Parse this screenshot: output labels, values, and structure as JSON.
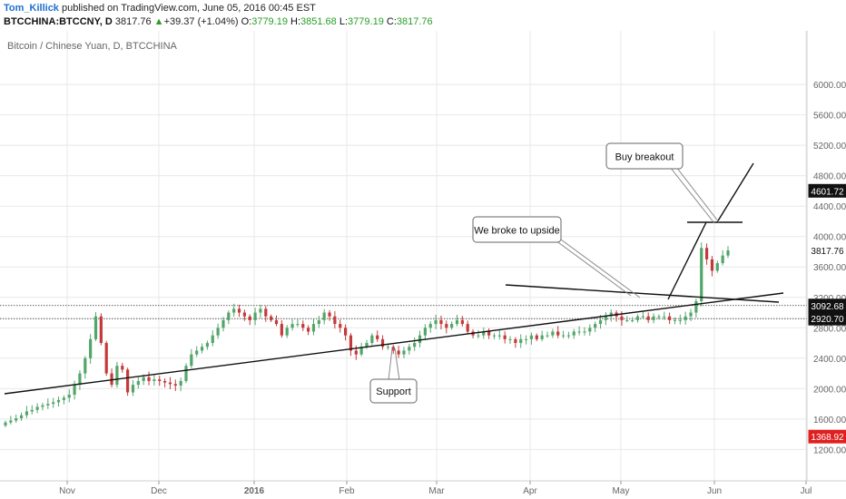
{
  "header": {
    "author": "Tom_Killick",
    "published": "published on TradingView.com, June 05, 2016 00:45 EST",
    "symbol": "BTCCHINA:BTCCNY, D",
    "last": "3817.76",
    "change": "+39.37 (+1.04%)",
    "o_label": "O:",
    "o": "3779.19",
    "h_label": "H:",
    "h": "3851.68",
    "l_label": "L:",
    "l": "3779.19",
    "c_label": "C:",
    "c": "3817.76"
  },
  "chart_data": {
    "type": "candlestick",
    "title": "Bitcoin / Chinese Yuan, D, BTCCHINA",
    "ylim": [
      900,
      6300
    ],
    "y_ticks": [
      "1200.00",
      "1600.00",
      "2000.00",
      "2400.00",
      "2800.00",
      "3200.00",
      "3600.00",
      "4000.00",
      "4400.00",
      "4800.00",
      "5200.00",
      "5600.00",
      "6000.00"
    ],
    "x_ticks": [
      "Nov",
      "Dec",
      "2016",
      "Feb",
      "Mar",
      "Apr",
      "May",
      "Jun",
      "Jul"
    ],
    "price_labels": [
      {
        "text": "4601.72",
        "value": 4601.72,
        "color": "#111111"
      },
      {
        "text": "3817.76",
        "value": 3817.76,
        "color": "#ffffff"
      },
      {
        "text": "3092.68",
        "value": 3092.68,
        "color": "#111111"
      },
      {
        "text": "2920.70",
        "value": 2920.7,
        "color": "#111111"
      },
      {
        "text": "1368.92",
        "value": 1368.92,
        "color": "#e02020"
      }
    ],
    "horizontal_levels": [
      3092.68,
      2920.7
    ],
    "closes": [
      1555,
      1580,
      1610,
      1650,
      1700,
      1720,
      1760,
      1780,
      1800,
      1820,
      1850,
      1880,
      1920,
      2050,
      2200,
      2400,
      2650,
      2950,
      2600,
      2200,
      2050,
      2300,
      2250,
      1950,
      2050,
      2100,
      2150,
      2100,
      2120,
      2100,
      2080,
      2060,
      2040,
      2100,
      2300,
      2450,
      2500,
      2550,
      2600,
      2700,
      2800,
      2900,
      3000,
      3050,
      3000,
      2950,
      2900,
      3000,
      3050,
      2950,
      2900,
      2850,
      2700,
      2800,
      2850,
      2850,
      2800,
      2750,
      2850,
      2900,
      3000,
      2950,
      2850,
      2800,
      2700,
      2500,
      2450,
      2550,
      2600,
      2700,
      2650,
      2550,
      2550,
      2500,
      2450,
      2500,
      2550,
      2600,
      2700,
      2800,
      2850,
      2900,
      2850,
      2800,
      2850,
      2900,
      2850,
      2750,
      2700,
      2700,
      2750,
      2700,
      2700,
      2700,
      2650,
      2650,
      2600,
      2650,
      2650,
      2700,
      2650,
      2700,
      2700,
      2750,
      2700,
      2700,
      2700,
      2750,
      2750,
      2750,
      2800,
      2850,
      2900,
      2950,
      3000,
      2950,
      2900,
      2900,
      2900,
      2950,
      2950,
      2900,
      2950,
      2950,
      2950,
      2900,
      2900,
      2900,
      2950,
      3000,
      3150,
      3850,
      3700,
      3550,
      3650,
      3750,
      3818
    ],
    "annotations": [
      {
        "text": "We broke to upside"
      },
      {
        "text": "Buy breakout"
      },
      {
        "text": "Support"
      }
    ],
    "colors": {
      "up": "#53a66a",
      "down": "#c43a3a",
      "grid": "#e8e8e8",
      "trend": "#111111"
    }
  }
}
